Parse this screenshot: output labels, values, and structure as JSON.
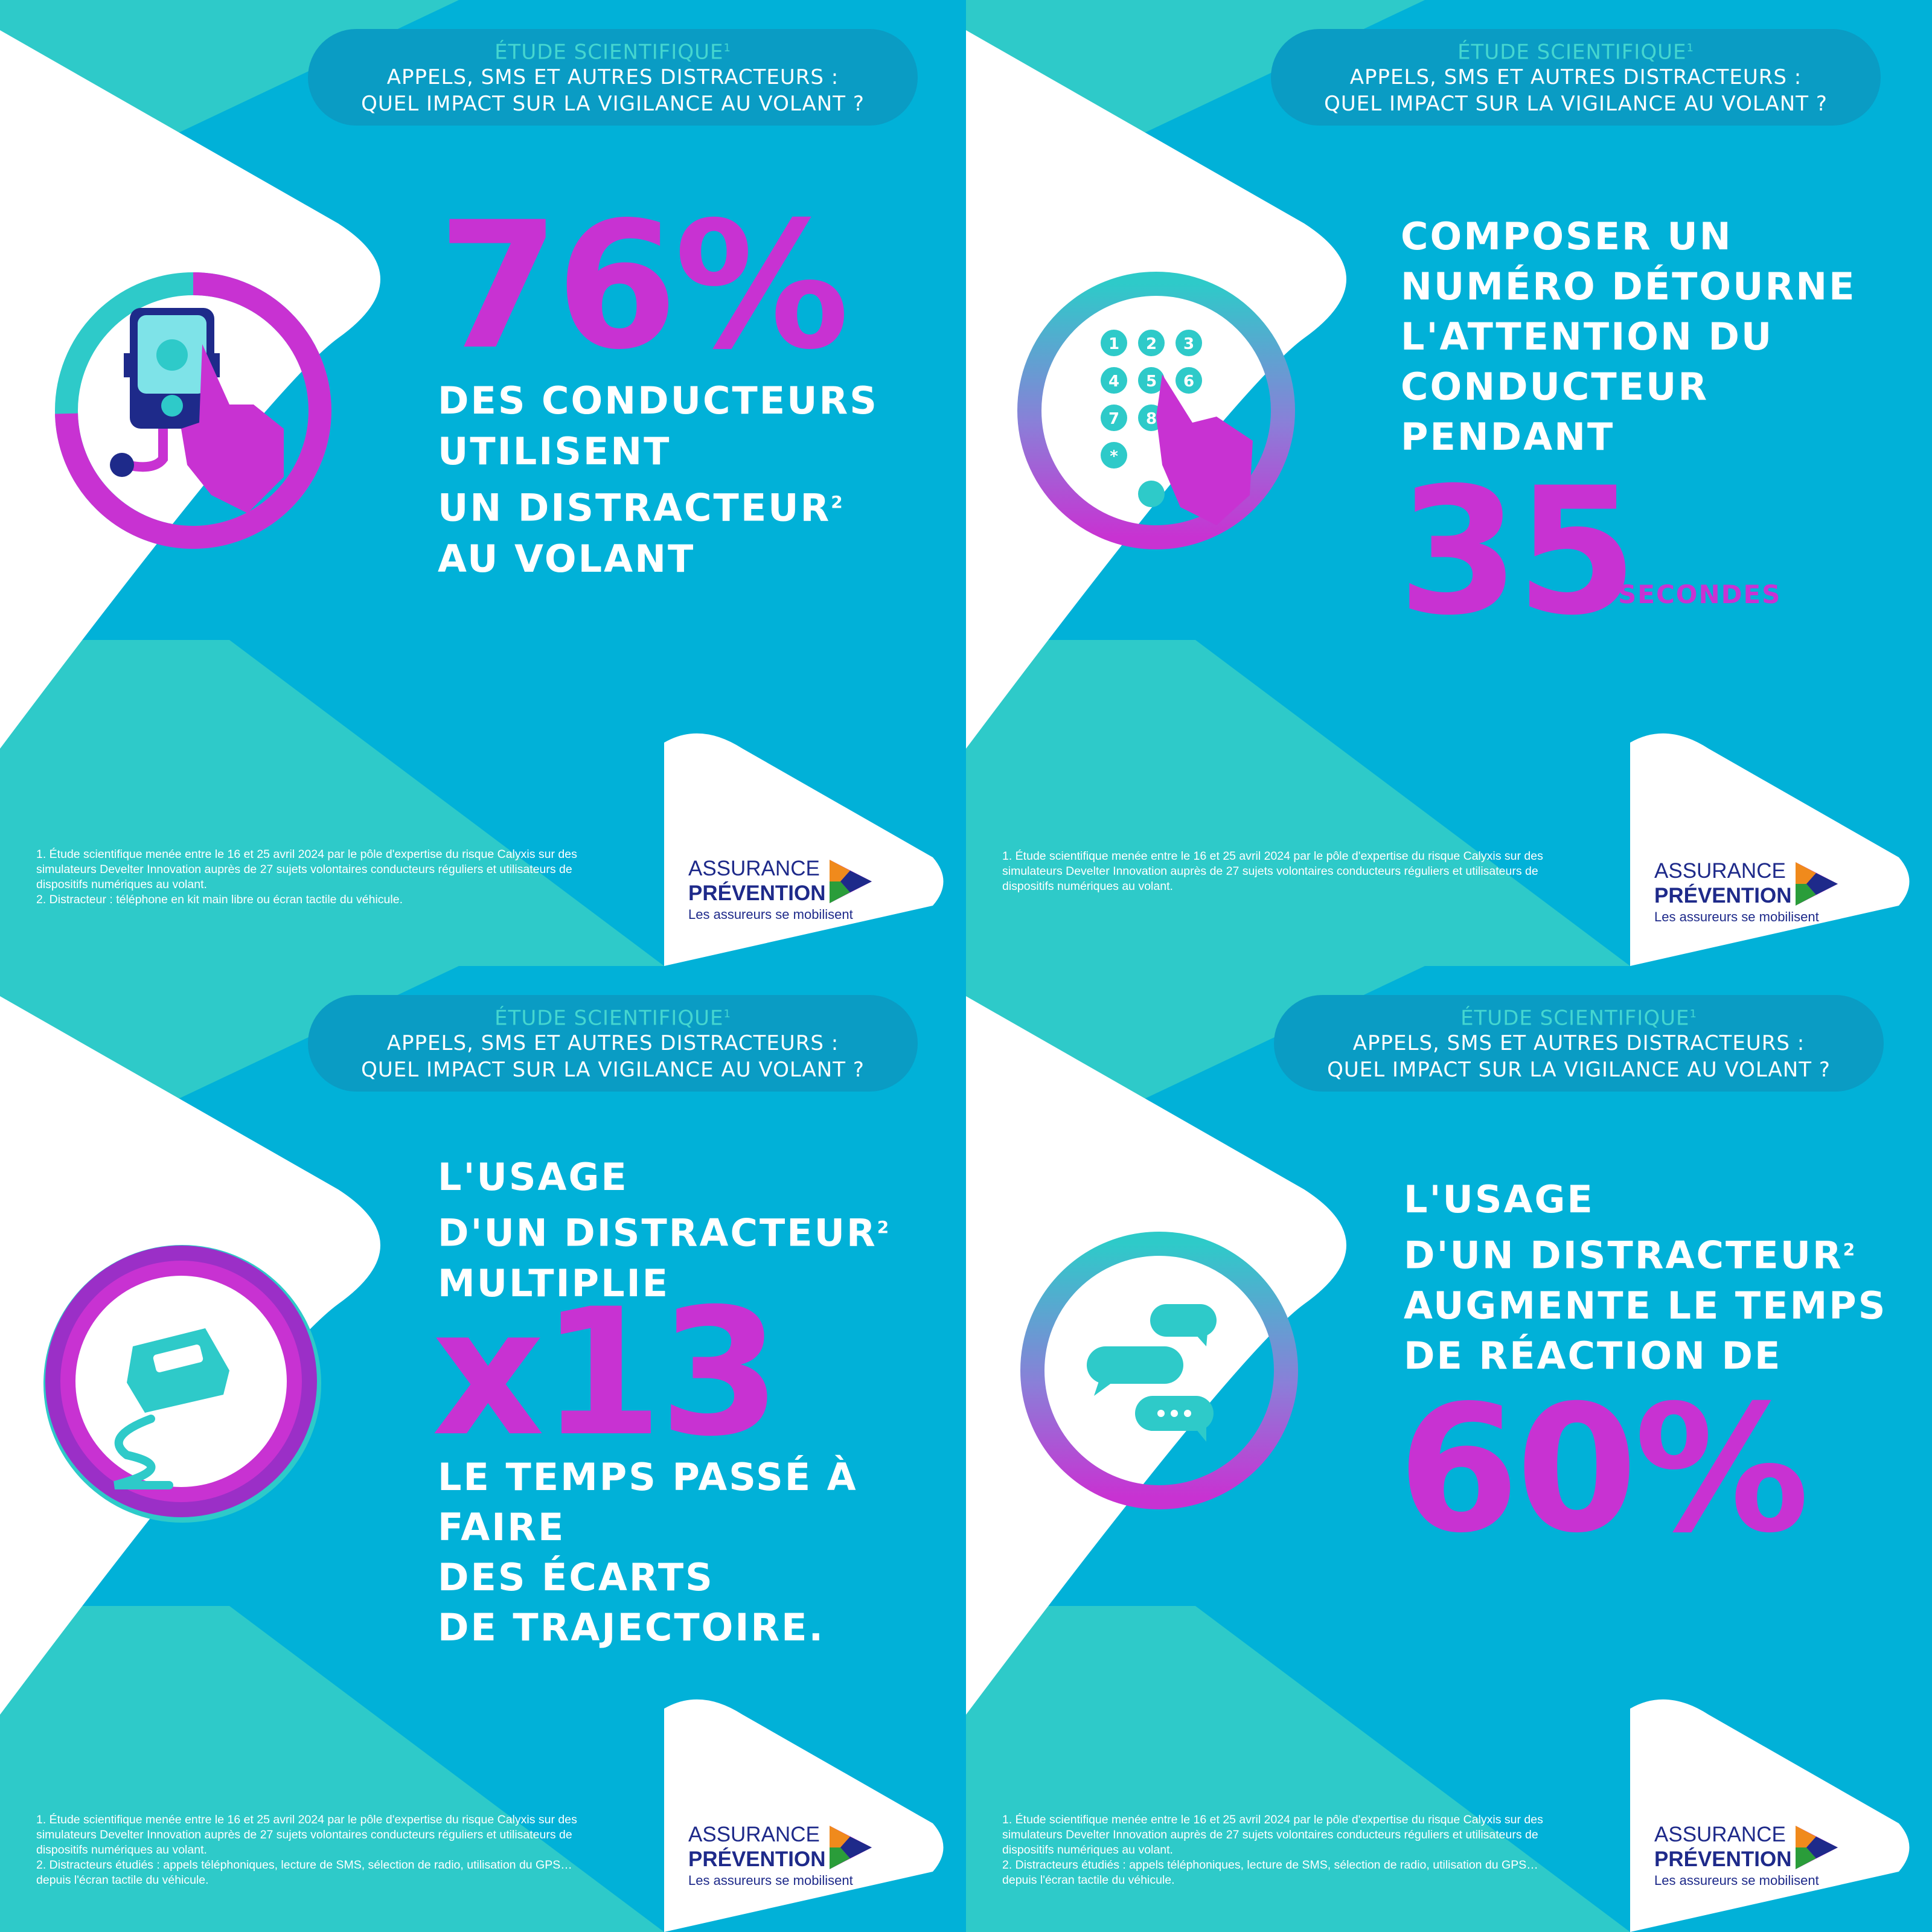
{
  "colors": {
    "teal": "#2ecac9",
    "blue": "#01b1d8",
    "magenta": "#c832d2",
    "header": "#0a9cc4",
    "navy": "#1e2a8a"
  },
  "header": {
    "study": "ÉTUDE SCIENTIFIQUE",
    "study_sup": "1",
    "line1": "APPELS, SMS ET AUTRES DISTRACTEURS :",
    "line2": "QUEL IMPACT SUR LA VIGILANCE AU VOLANT ?"
  },
  "logo": {
    "brand1": "ASSURANCE",
    "brand2": "PRÉVENTION",
    "tagline": "Les assureurs se mobilisent"
  },
  "panels": {
    "p1": {
      "big": "76%",
      "lines": [
        "DES CONDUCTEURS",
        "UTILISENT",
        "UN DISTRACTEUR",
        "AU VOLANT"
      ],
      "sup": "2",
      "footnotes": [
        "1. Étude scientifique menée entre le 16 et 25 avril 2024 par le pôle d'expertise du risque Calyxis sur des",
        "simulateurs Develter Innovation auprès de 27 sujets volontaires conducteurs réguliers et utilisateurs de",
        "dispositifs numériques au volant.",
        "2. Distracteur : téléphone en kit main libre ou écran tactile du véhicule."
      ],
      "icon": "phone-holder-hand-icon"
    },
    "p2": {
      "lines": [
        "COMPOSER UN",
        "NUMÉRO DÉTOURNE",
        "L'ATTENTION DU",
        "CONDUCTEUR",
        "PENDANT"
      ],
      "big": "35",
      "unit": "SECONDES",
      "footnotes": [
        "1. Étude scientifique menée entre le 16 et 25 avril 2024 par le pôle d'expertise du risque Calyxis sur des",
        "simulateurs Develter Innovation auprès de 27 sujets volontaires conducteurs réguliers et utilisateurs de",
        "dispositifs numériques au volant."
      ],
      "keypad": [
        "1",
        "2",
        "3",
        "4",
        "5",
        "6",
        "7",
        "8",
        "*"
      ],
      "icon": "keypad-hand-icon"
    },
    "p3": {
      "lines_top": [
        "L'USAGE",
        "D'UN DISTRACTEUR",
        "MULTIPLIE"
      ],
      "sup": "2",
      "big": "x13",
      "lines_bottom": [
        "LE TEMPS PASSÉ À FAIRE",
        "DES ÉCARTS",
        "DE TRAJECTOIRE."
      ],
      "footnotes": [
        "1. Étude scientifique menée entre le 16 et 25 avril 2024 par le pôle d'expertise du risque Calyxis sur des",
        "simulateurs Develter Innovation auprès de 27 sujets volontaires conducteurs réguliers et utilisateurs de",
        "dispositifs numériques au volant.",
        "2. Distracteurs étudiés : appels téléphoniques, lecture de SMS, sélection de radio, utilisation du GPS…",
        "depuis l'écran tactile du véhicule."
      ],
      "icon": "skidding-car-icon"
    },
    "p4": {
      "lines": [
        "L'USAGE",
        "D'UN DISTRACTEUR",
        "AUGMENTE LE TEMPS",
        "DE RÉACTION DE"
      ],
      "sup": "2",
      "big": "60%",
      "footnotes": [
        "1. Étude scientifique menée entre le 16 et 25 avril 2024 par le pôle d'expertise du risque Calyxis sur des",
        "simulateurs Develter Innovation auprès de 27 sujets volontaires conducteurs réguliers et utilisateurs de",
        "dispositifs numériques au volant.",
        "2. Distracteurs étudiés : appels téléphoniques, lecture de SMS, sélection de radio, utilisation du GPS…",
        "depuis l'écran tactile du véhicule."
      ],
      "icon": "chat-bubbles-icon"
    }
  }
}
